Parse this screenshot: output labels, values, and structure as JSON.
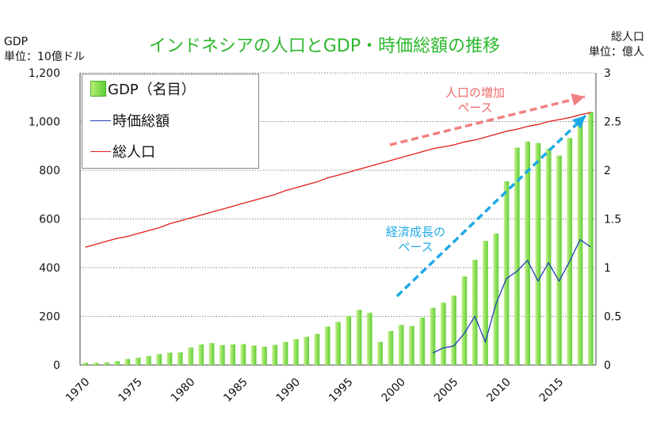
{
  "title": "インドネシアの人口とGDP・時価総額の推移",
  "left_axis": {
    "label_line1": "GDP",
    "label_line2": "単位：10億ドル"
  },
  "right_axis": {
    "label_line1": "総人口",
    "label_line2": "単位：億人"
  },
  "annotations": {
    "population": {
      "line1": "人口の増加",
      "line2": "ペース",
      "color": "#f08080"
    },
    "growth": {
      "line1": "経済成長の",
      "line2": "ペース",
      "color": "#1eaae7"
    }
  },
  "colors": {
    "gdp": "#5ccf34",
    "market_cap": "#1f3fb8",
    "population": "#e41a1a",
    "grid": "#888888"
  },
  "chart_data": {
    "type": "bar",
    "title": "インドネシアの人口とGDP・時価総額の推移",
    "x": [
      1970,
      1971,
      1972,
      1973,
      1974,
      1975,
      1976,
      1977,
      1978,
      1979,
      1980,
      1981,
      1982,
      1983,
      1984,
      1985,
      1986,
      1987,
      1988,
      1989,
      1990,
      1991,
      1992,
      1993,
      1994,
      1995,
      1996,
      1997,
      1998,
      1999,
      2000,
      2001,
      2002,
      2003,
      2004,
      2005,
      2006,
      2007,
      2008,
      2009,
      2010,
      2011,
      2012,
      2013,
      2014,
      2015,
      2016,
      2017,
      2018
    ],
    "x_tick_labels": [
      "1970",
      "1975",
      "1980",
      "1985",
      "1990",
      "1995",
      "2000",
      "2005",
      "2010",
      "2015"
    ],
    "y_left": {
      "label": "GDP 単位：10億ドル",
      "ylim": [
        0,
        1200
      ],
      "ticks": [
        "0",
        "200",
        "400",
        "600",
        "800",
        "1,000",
        "1,200"
      ]
    },
    "y_right": {
      "label": "総人口 単位：億人",
      "ylim": [
        0,
        3
      ],
      "ticks": [
        "0",
        "0.5",
        "1",
        "1.5",
        "2",
        "2.5",
        "3"
      ]
    },
    "grid": true,
    "legend_position": "top-left",
    "series": [
      {
        "name": "GDP（名目）",
        "type": "bar",
        "axis": "left",
        "values": [
          9,
          9,
          11,
          16,
          25,
          30,
          37,
          45,
          51,
          52,
          72,
          85,
          90,
          82,
          85,
          86,
          80,
          76,
          83,
          95,
          106,
          116,
          128,
          158,
          177,
          202,
          227,
          215,
          95,
          140,
          165,
          160,
          195,
          235,
          256,
          285,
          364,
          432,
          510,
          540,
          755,
          893,
          918,
          912,
          890,
          860,
          932,
          1015,
          1040
        ]
      },
      {
        "name": "時価総額",
        "type": "line",
        "axis": "left",
        "values": [
          null,
          null,
          null,
          null,
          null,
          null,
          null,
          null,
          null,
          null,
          null,
          null,
          null,
          null,
          null,
          null,
          null,
          null,
          null,
          null,
          null,
          null,
          null,
          null,
          null,
          null,
          null,
          null,
          null,
          null,
          null,
          null,
          null,
          50,
          70,
          78,
          130,
          200,
          95,
          250,
          355,
          385,
          430,
          345,
          420,
          345,
          425,
          515,
          485
        ]
      },
      {
        "name": "総人口",
        "type": "line",
        "axis": "right",
        "values": [
          1.21,
          1.24,
          1.27,
          1.3,
          1.32,
          1.35,
          1.38,
          1.41,
          1.45,
          1.48,
          1.51,
          1.54,
          1.57,
          1.6,
          1.63,
          1.66,
          1.69,
          1.72,
          1.75,
          1.79,
          1.82,
          1.85,
          1.88,
          1.92,
          1.95,
          1.98,
          2.01,
          2.04,
          2.07,
          2.1,
          2.13,
          2.16,
          2.19,
          2.22,
          2.24,
          2.26,
          2.29,
          2.31,
          2.34,
          2.37,
          2.4,
          2.42,
          2.45,
          2.47,
          2.5,
          2.52,
          2.54,
          2.57,
          2.59
        ]
      }
    ]
  }
}
